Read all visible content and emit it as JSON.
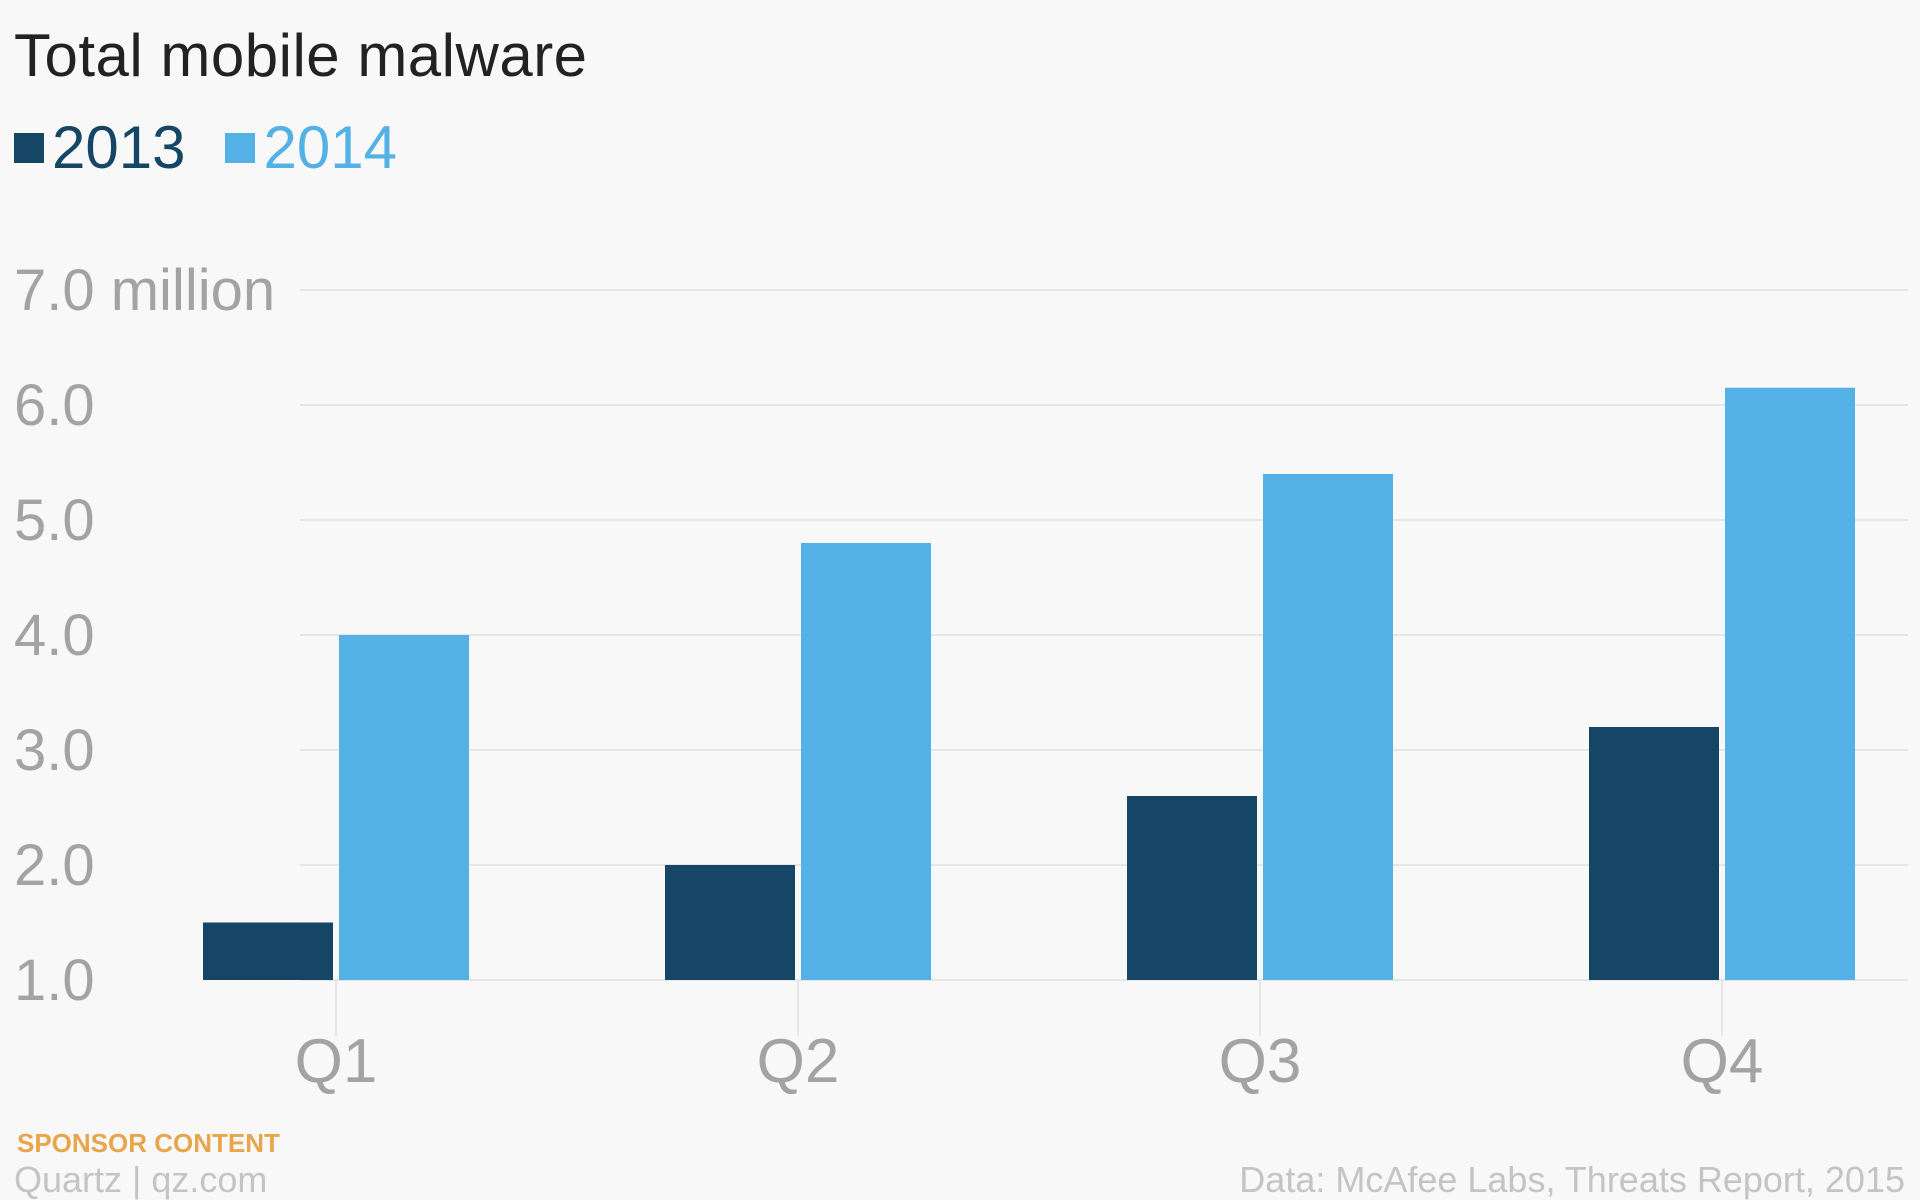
{
  "chart_data": {
    "type": "bar",
    "title": "Total mobile malware",
    "categories": [
      "Q1",
      "Q2",
      "Q3",
      "Q4"
    ],
    "series": [
      {
        "name": "2013",
        "color": "#154666",
        "values": [
          1.5,
          2.0,
          2.6,
          3.2
        ]
      },
      {
        "name": "2014",
        "color": "#53b1e5",
        "values": [
          4.0,
          4.8,
          5.4,
          6.15
        ]
      }
    ],
    "ylim": [
      1.0,
      7.0
    ],
    "yticks": [
      {
        "value": 1.0,
        "label": "1.0"
      },
      {
        "value": 2.0,
        "label": "2.0"
      },
      {
        "value": 3.0,
        "label": "3.0"
      },
      {
        "value": 4.0,
        "label": "4.0"
      },
      {
        "value": 5.0,
        "label": "5.0"
      },
      {
        "value": 6.0,
        "label": "6.0"
      },
      {
        "value": 7.0,
        "label": "7.0 million"
      }
    ],
    "xlabel": "",
    "ylabel": "",
    "grid": true,
    "legend_position": "top-left"
  },
  "footer": {
    "sponsor": "SPONSOR CONTENT",
    "brand": "Quartz | qz.com",
    "source": "Data: McAfee Labs, Threats Report, 2015"
  },
  "colors": {
    "background": "#f8f8f8",
    "gridline": "#e6e6e6",
    "tick_label": "#a3a3a3",
    "sponsor": "#e8a54c"
  }
}
